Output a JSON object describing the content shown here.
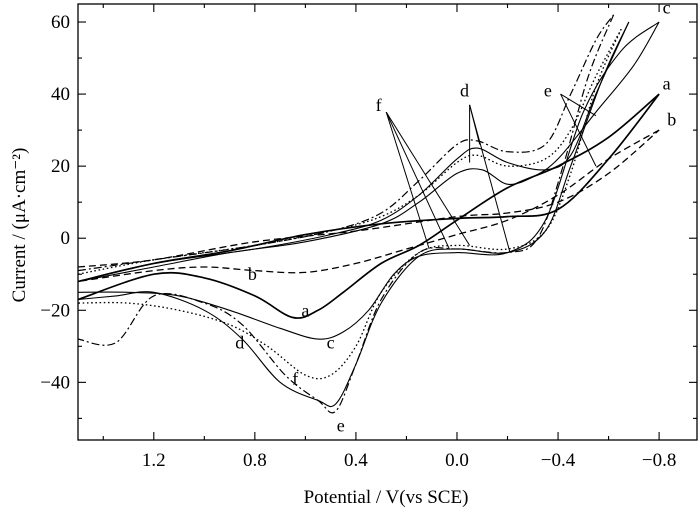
{
  "chart_data": {
    "type": "line",
    "title": "",
    "xlabel": "Potential / V(vs SCE)",
    "ylabel": "Current / (μA·cm⁻²)",
    "xlim": [
      1.5,
      -0.95
    ],
    "ylim": [
      -56,
      65
    ],
    "x_reversed": true,
    "x_ticks": [
      1.2,
      0.8,
      0.4,
      0.0,
      -0.4,
      -0.8
    ],
    "x_tick_labels": [
      "1.2",
      "0.8",
      "0.4",
      "0.0",
      "−0.4",
      "−0.8"
    ],
    "y_ticks": [
      60,
      40,
      20,
      0,
      -20,
      -40
    ],
    "y_tick_labels": [
      "60",
      "40",
      "20",
      "0",
      "−20",
      "−40"
    ],
    "grid": false,
    "legend": "none",
    "series": [
      {
        "name": "a",
        "style": "solid",
        "width": 1.7,
        "forward": [
          [
            1.5,
            -12
          ],
          [
            1.2,
            -7
          ],
          [
            0.9,
            -3.5
          ],
          [
            0.6,
            1
          ],
          [
            0.3,
            4
          ],
          [
            0.0,
            5.5
          ],
          [
            -0.2,
            6
          ],
          [
            -0.4,
            8
          ],
          [
            -0.6,
            22
          ],
          [
            -0.8,
            40
          ]
        ],
        "reverse": [
          [
            -0.8,
            40
          ],
          [
            -0.6,
            28
          ],
          [
            -0.4,
            20
          ],
          [
            -0.2,
            14
          ],
          [
            0.0,
            5
          ],
          [
            0.15,
            -2
          ],
          [
            0.3,
            -7
          ],
          [
            0.45,
            -15
          ],
          [
            0.55,
            -20
          ],
          [
            0.65,
            -22
          ],
          [
            0.8,
            -16
          ],
          [
            1.0,
            -11
          ],
          [
            1.2,
            -10
          ],
          [
            1.5,
            -17
          ]
        ]
      },
      {
        "name": "b",
        "style": "dashed",
        "width": 1.3,
        "forward": [
          [
            1.5,
            -8
          ],
          [
            1.2,
            -6
          ],
          [
            0.8,
            -1
          ],
          [
            0.4,
            2
          ],
          [
            0.0,
            6
          ],
          [
            -0.2,
            7
          ],
          [
            -0.4,
            10
          ],
          [
            -0.6,
            18
          ],
          [
            -0.8,
            30
          ]
        ],
        "reverse": [
          [
            -0.8,
            30
          ],
          [
            -0.6,
            22
          ],
          [
            -0.4,
            12
          ],
          [
            -0.2,
            5
          ],
          [
            0.0,
            1
          ],
          [
            0.2,
            -3
          ],
          [
            0.4,
            -7
          ],
          [
            0.6,
            -9.5
          ],
          [
            0.8,
            -9
          ],
          [
            1.0,
            -8
          ],
          [
            1.2,
            -9
          ],
          [
            1.5,
            -12
          ]
        ]
      },
      {
        "name": "c",
        "style": "solid",
        "width": 1.1,
        "forward": [
          [
            1.5,
            -12
          ],
          [
            1.2,
            -8
          ],
          [
            0.9,
            -4
          ],
          [
            0.6,
            -1
          ],
          [
            0.3,
            4
          ],
          [
            0.15,
            10
          ],
          [
            0.0,
            18
          ],
          [
            -0.1,
            19
          ],
          [
            -0.2,
            15
          ],
          [
            -0.3,
            17
          ],
          [
            -0.4,
            22
          ],
          [
            -0.55,
            35
          ],
          [
            -0.7,
            48
          ],
          [
            -0.8,
            60
          ]
        ],
        "reverse": [
          [
            -0.8,
            60
          ],
          [
            -0.65,
            52
          ],
          [
            -0.5,
            35
          ],
          [
            -0.35,
            5
          ],
          [
            -0.2,
            -4
          ],
          [
            0.0,
            -4
          ],
          [
            0.15,
            -5
          ],
          [
            0.25,
            -10
          ],
          [
            0.35,
            -20
          ],
          [
            0.45,
            -26
          ],
          [
            0.55,
            -28
          ],
          [
            0.7,
            -25
          ],
          [
            0.9,
            -20
          ],
          [
            1.1,
            -16
          ],
          [
            1.3,
            -15
          ],
          [
            1.5,
            -15
          ]
        ]
      },
      {
        "name": "d",
        "style": "solid",
        "width": 1.1,
        "forward": [
          [
            1.5,
            -12
          ],
          [
            1.2,
            -7
          ],
          [
            0.8,
            -3
          ],
          [
            0.5,
            1
          ],
          [
            0.3,
            5
          ],
          [
            0.15,
            12
          ],
          [
            0.0,
            22
          ],
          [
            -0.08,
            25
          ],
          [
            -0.2,
            21
          ],
          [
            -0.35,
            19
          ],
          [
            -0.45,
            23
          ],
          [
            -0.55,
            40
          ],
          [
            -0.68,
            60
          ]
        ],
        "reverse": [
          [
            -0.68,
            60
          ],
          [
            -0.58,
            45
          ],
          [
            -0.45,
            20
          ],
          [
            -0.35,
            2
          ],
          [
            -0.2,
            -4
          ],
          [
            0.0,
            -3
          ],
          [
            0.15,
            -5
          ],
          [
            0.3,
            -18
          ],
          [
            0.4,
            -35
          ],
          [
            0.48,
            -46
          ],
          [
            0.55,
            -45
          ],
          [
            0.7,
            -40
          ],
          [
            0.85,
            -28
          ],
          [
            1.0,
            -20
          ],
          [
            1.2,
            -15
          ],
          [
            1.35,
            -16
          ],
          [
            1.5,
            -17
          ]
        ]
      },
      {
        "name": "e",
        "style": "dashdot",
        "width": 1.2,
        "forward": [
          [
            1.5,
            -9
          ],
          [
            1.2,
            -6
          ],
          [
            0.8,
            -2
          ],
          [
            0.5,
            2
          ],
          [
            0.3,
            7
          ],
          [
            0.15,
            16
          ],
          [
            0.0,
            26
          ],
          [
            -0.08,
            27
          ],
          [
            -0.2,
            24
          ],
          [
            -0.35,
            26
          ],
          [
            -0.45,
            40
          ],
          [
            -0.55,
            55
          ],
          [
            -0.62,
            62
          ]
        ],
        "reverse": [
          [
            -0.62,
            62
          ],
          [
            -0.52,
            45
          ],
          [
            -0.42,
            20
          ],
          [
            -0.32,
            0
          ],
          [
            -0.2,
            -4
          ],
          [
            0.0,
            -3
          ],
          [
            0.15,
            -4
          ],
          [
            0.3,
            -17
          ],
          [
            0.4,
            -35
          ],
          [
            0.48,
            -48
          ],
          [
            0.55,
            -45
          ],
          [
            0.68,
            -38
          ],
          [
            0.85,
            -24
          ],
          [
            1.0,
            -18
          ],
          [
            1.2,
            -16
          ],
          [
            1.35,
            -29
          ],
          [
            1.5,
            -28
          ]
        ]
      },
      {
        "name": "f",
        "style": "dotted",
        "width": 1.3,
        "forward": [
          [
            1.5,
            -10
          ],
          [
            1.2,
            -6
          ],
          [
            0.8,
            -2
          ],
          [
            0.5,
            2
          ],
          [
            0.3,
            6
          ],
          [
            0.15,
            12
          ],
          [
            0.0,
            21
          ],
          [
            -0.08,
            23
          ],
          [
            -0.2,
            20
          ],
          [
            -0.35,
            22
          ],
          [
            -0.45,
            30
          ],
          [
            -0.55,
            45
          ],
          [
            -0.65,
            58
          ]
        ],
        "reverse": [
          [
            -0.65,
            58
          ],
          [
            -0.55,
            42
          ],
          [
            -0.45,
            18
          ],
          [
            -0.35,
            2
          ],
          [
            -0.2,
            -3
          ],
          [
            0.0,
            -2
          ],
          [
            0.15,
            -4
          ],
          [
            0.3,
            -15
          ],
          [
            0.4,
            -30
          ],
          [
            0.5,
            -38
          ],
          [
            0.6,
            -38
          ],
          [
            0.75,
            -30
          ],
          [
            0.9,
            -24
          ],
          [
            1.1,
            -20
          ],
          [
            1.3,
            -18
          ],
          [
            1.5,
            -18
          ]
        ]
      }
    ],
    "annotations": [
      {
        "text": "a",
        "x": -0.83,
        "y": 43
      },
      {
        "text": "b",
        "x": -0.85,
        "y": 33
      },
      {
        "text": "c",
        "x": -0.83,
        "y": 64
      },
      {
        "text": "d",
        "x": -0.03,
        "y": 41
      },
      {
        "text": "e",
        "x": -0.36,
        "y": 41
      },
      {
        "text": "f",
        "x": 0.31,
        "y": 37
      },
      {
        "text": "b",
        "x": 0.81,
        "y": -10
      },
      {
        "text": "a",
        "x": 0.6,
        "y": -20
      },
      {
        "text": "c",
        "x": 0.5,
        "y": -29
      },
      {
        "text": "d",
        "x": 0.86,
        "y": -29
      },
      {
        "text": "f",
        "x": 0.64,
        "y": -39
      },
      {
        "text": "e",
        "x": 0.46,
        "y": -52
      }
    ],
    "leaders": [
      {
        "from": [
          0.28,
          35
        ],
        "to": [
          0.03,
          -3
        ]
      },
      {
        "from": [
          0.28,
          35
        ],
        "to": [
          -0.05,
          -2
        ]
      },
      {
        "from": [
          0.28,
          35
        ],
        "to": [
          0.11,
          -3
        ]
      },
      {
        "from": [
          -0.05,
          37
        ],
        "to": [
          -0.05,
          21
        ]
      },
      {
        "from": [
          -0.05,
          37
        ],
        "to": [
          -0.09,
          26
        ]
      },
      {
        "from": [
          -0.05,
          37
        ],
        "to": [
          -0.21,
          -4
        ]
      },
      {
        "from": [
          -0.41,
          40
        ],
        "to": [
          -0.55,
          34
        ]
      },
      {
        "from": [
          -0.41,
          40
        ],
        "to": [
          -0.55,
          20
        ]
      }
    ]
  }
}
